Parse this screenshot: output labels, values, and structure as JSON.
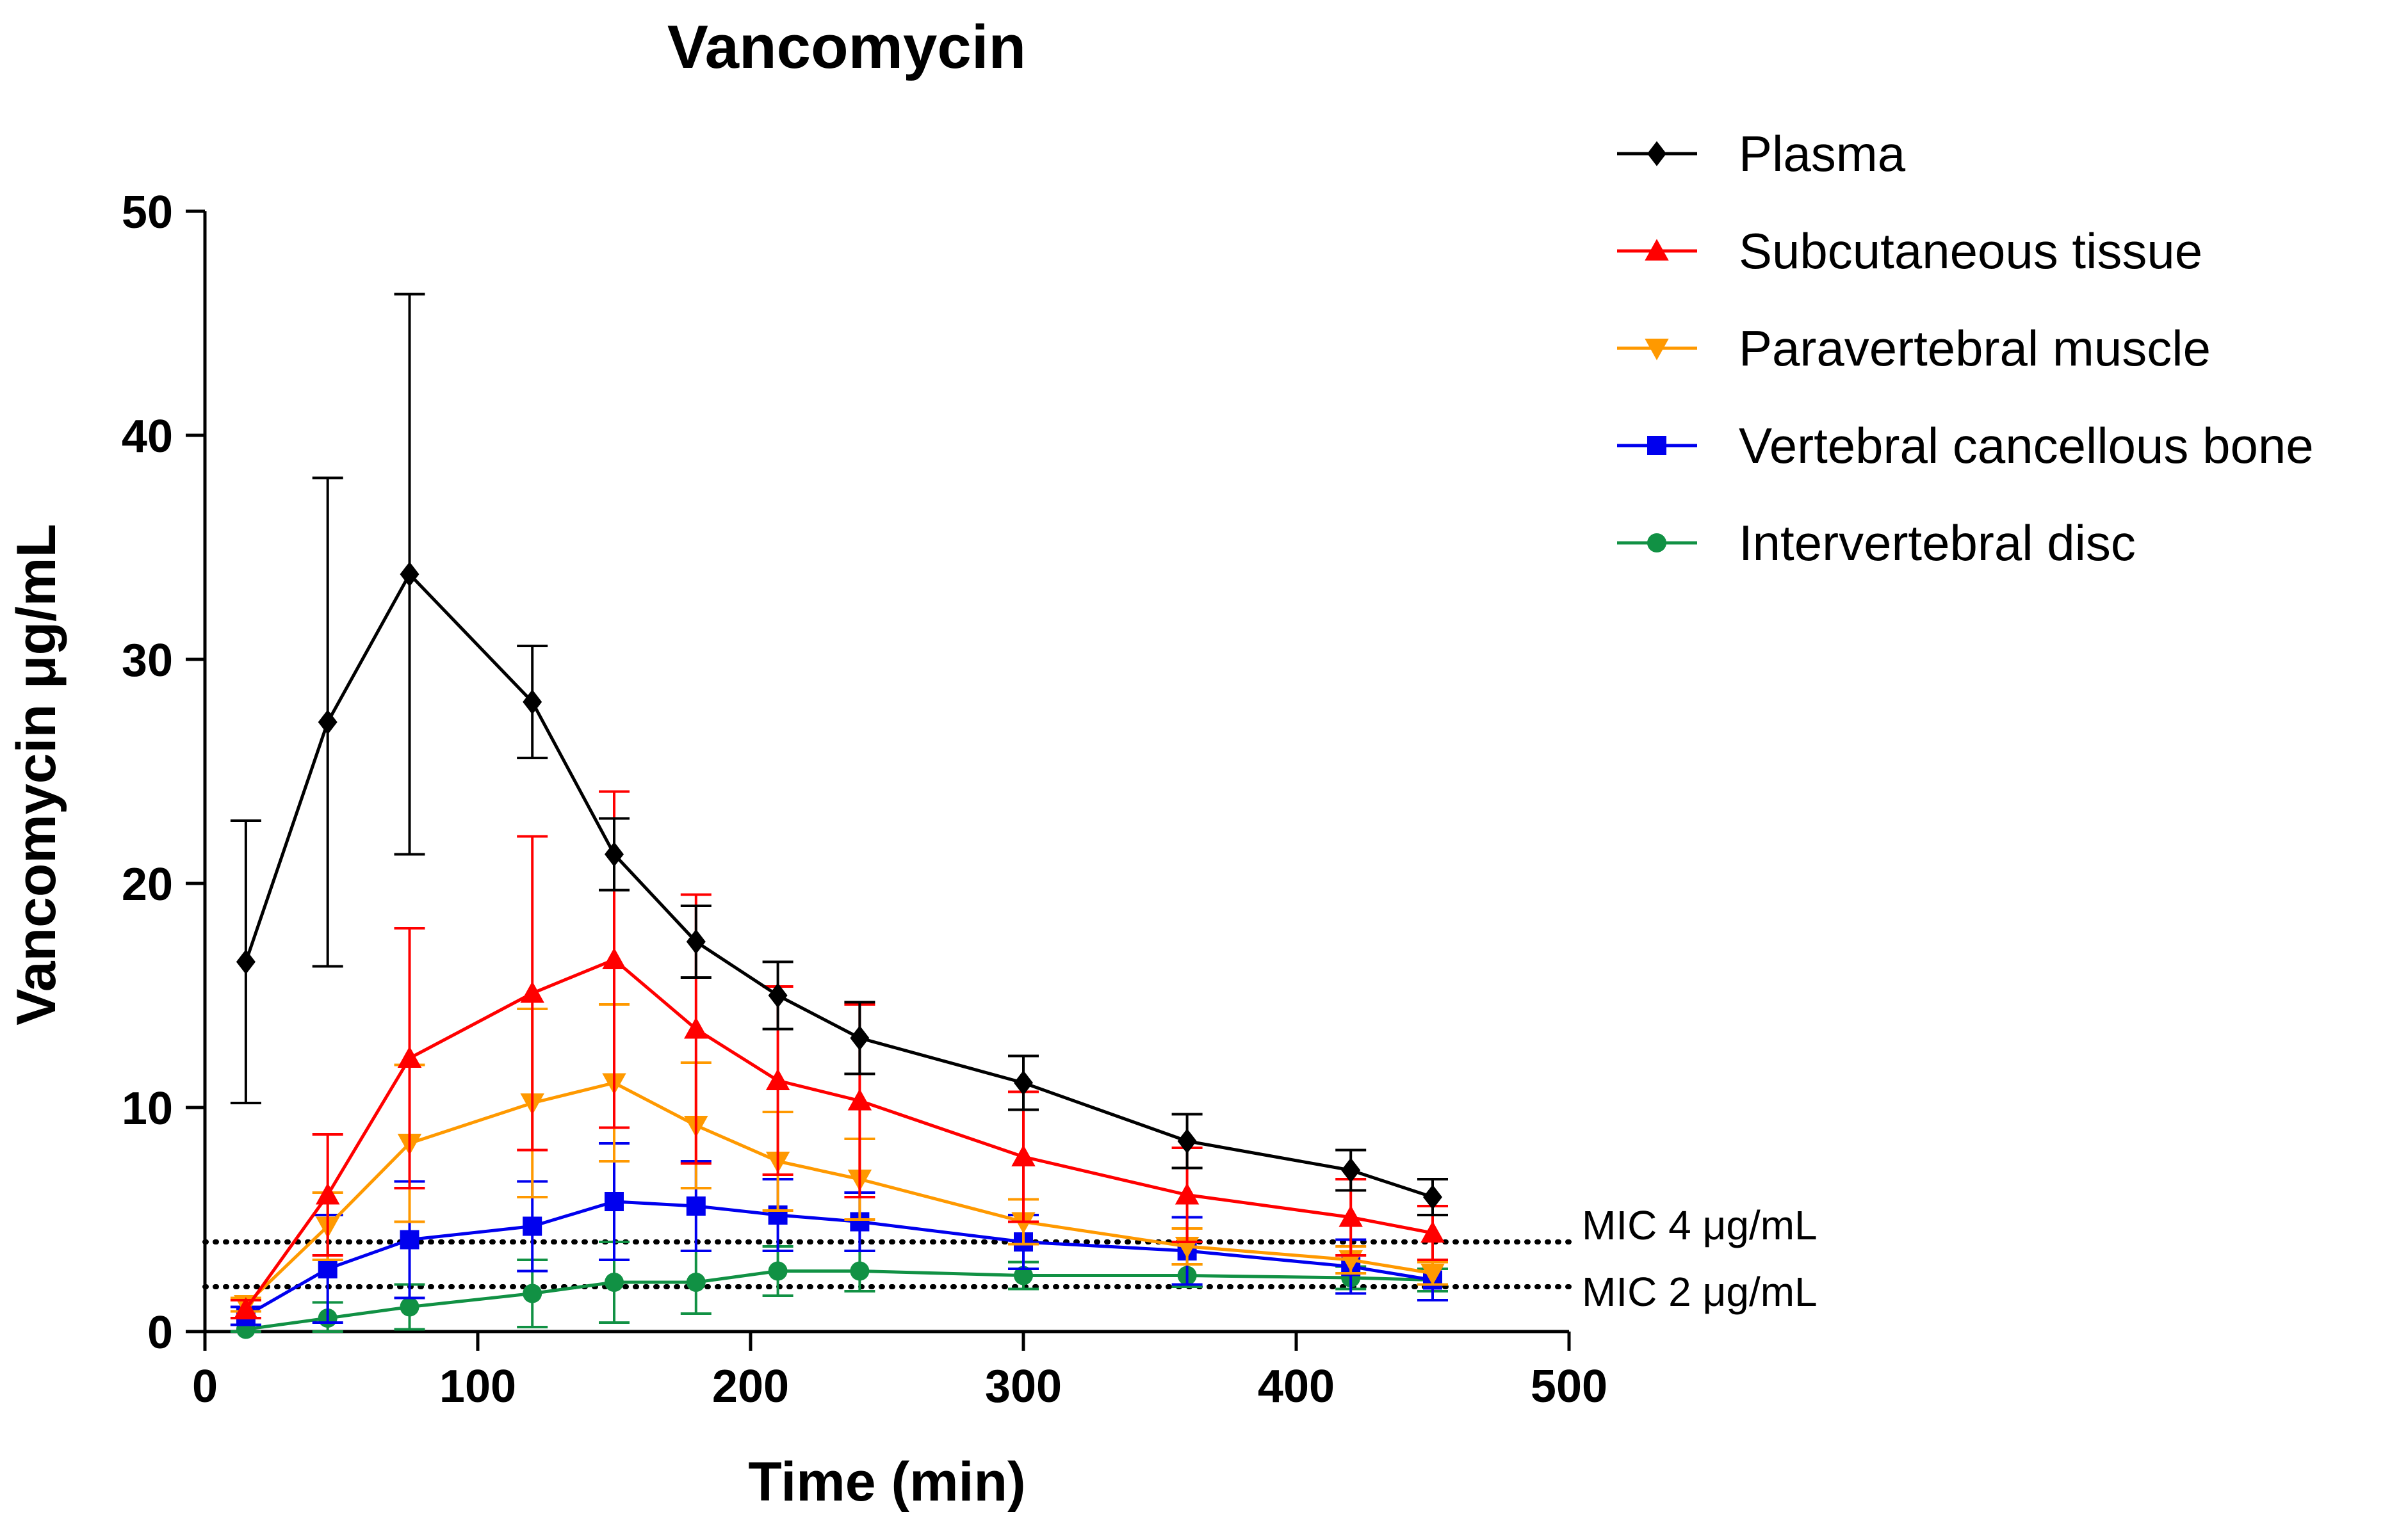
{
  "chart_data": {
    "type": "line",
    "title": "Vancomycin",
    "xlabel": "Time (min)",
    "ylabel": "Vancomycin μg/mL",
    "xlim": [
      0,
      500
    ],
    "ylim": [
      0,
      50
    ],
    "xticks": [
      "0",
      "100",
      "200",
      "300",
      "400",
      "500"
    ],
    "yticks": [
      "0",
      "10",
      "20",
      "30",
      "40",
      "50"
    ],
    "grid": false,
    "legend_position": "top-right outside plot",
    "x": [
      15,
      45,
      75,
      120,
      150,
      180,
      210,
      240,
      300,
      360,
      420,
      450
    ],
    "series": [
      {
        "name": "Plasma",
        "color": "#000000",
        "marker": "diamond",
        "values": [
          16.5,
          27.2,
          33.8,
          28.1,
          21.3,
          17.4,
          15.0,
          13.1,
          11.1,
          8.5,
          7.2,
          6.0
        ],
        "error": [
          6.3,
          10.9,
          12.5,
          2.5,
          1.6,
          1.6,
          1.5,
          1.6,
          1.2,
          1.2,
          0.9,
          0.8
        ]
      },
      {
        "name": "Subcutaneous tissue",
        "color": "#ff0000",
        "marker": "triangle-up",
        "values": [
          1.0,
          6.1,
          12.2,
          15.1,
          16.6,
          13.5,
          11.2,
          10.3,
          7.8,
          6.1,
          5.1,
          4.4
        ],
        "error": [
          0.4,
          2.7,
          5.8,
          7.0,
          7.5,
          6.0,
          4.2,
          4.3,
          2.9,
          2.1,
          1.7,
          1.2
        ]
      },
      {
        "name": "Paravertebral muscle",
        "color": "#ff9900",
        "marker": "triangle-down",
        "values": [
          1.2,
          4.7,
          8.4,
          10.2,
          11.1,
          9.2,
          7.6,
          6.8,
          4.9,
          3.8,
          3.2,
          2.6
        ],
        "error": [
          0.3,
          1.5,
          3.5,
          4.2,
          3.5,
          2.8,
          2.2,
          1.8,
          1.0,
          0.8,
          0.6,
          0.5
        ]
      },
      {
        "name": "Vertebral cancellous bone",
        "color": "#0000ee",
        "marker": "square",
        "values": [
          0.7,
          2.8,
          4.1,
          4.7,
          5.8,
          5.6,
          5.2,
          4.9,
          4.0,
          3.6,
          2.9,
          2.3
        ],
        "error": [
          0.4,
          2.4,
          2.6,
          2.0,
          2.6,
          2.0,
          1.6,
          1.3,
          1.2,
          1.5,
          1.2,
          0.9
        ]
      },
      {
        "name": "Intervertebral disc",
        "color": "#119144",
        "marker": "circle",
        "values": [
          0.1,
          0.6,
          1.1,
          1.7,
          2.2,
          2.2,
          2.7,
          2.7,
          2.5,
          2.5,
          2.4,
          2.3
        ],
        "error": [
          0.2,
          0.7,
          1.0,
          1.5,
          1.8,
          1.4,
          1.1,
          0.9,
          0.6,
          0.5,
          0.5,
          0.5
        ]
      }
    ],
    "reference_lines": [
      {
        "label": "MIC 4 μg/mL",
        "y": 4
      },
      {
        "label": "MIC 2 μg/mL",
        "y": 2
      }
    ]
  }
}
